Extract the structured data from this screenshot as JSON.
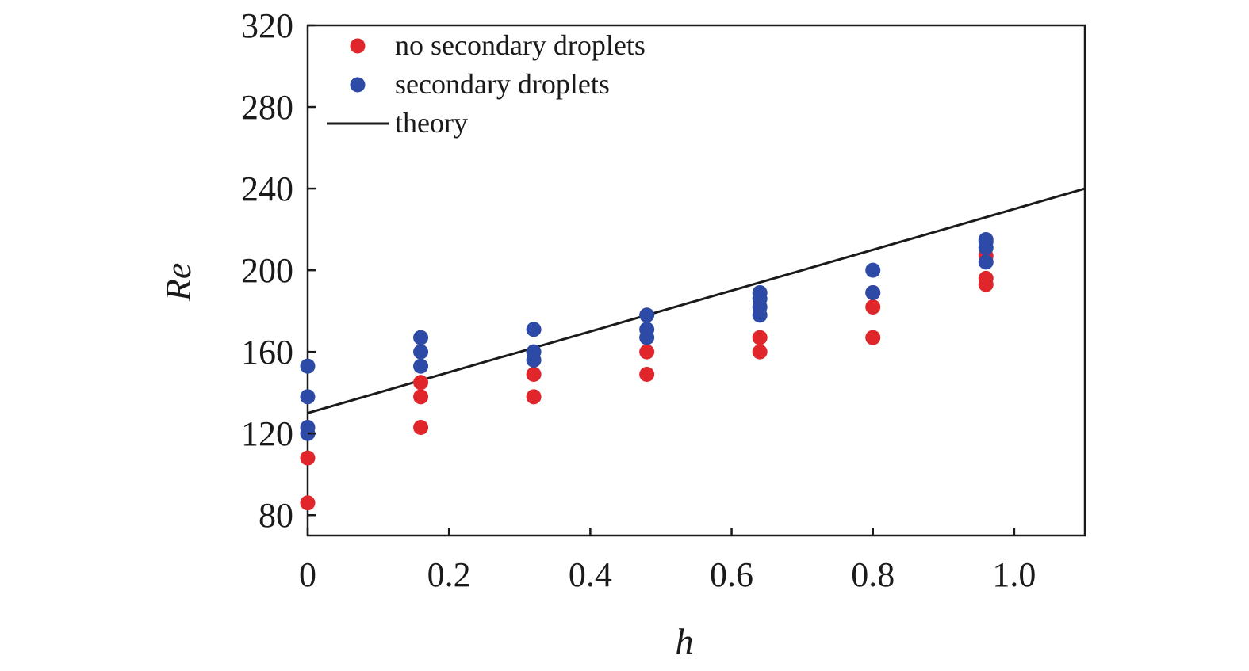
{
  "chart_data": {
    "type": "scatter",
    "title": "",
    "xlabel": "h",
    "ylabel": "Re",
    "xlim": [
      0,
      1.1
    ],
    "ylim": [
      70,
      320
    ],
    "xticks": [
      0,
      0.2,
      0.4,
      0.6,
      0.8,
      1.0
    ],
    "xtick_labels": [
      "0",
      "0.2",
      "0.4",
      "0.6",
      "0.8",
      "1.0"
    ],
    "yticks": [
      80,
      120,
      160,
      200,
      240,
      280,
      320
    ],
    "ytick_labels": [
      "80",
      "120",
      "160",
      "200",
      "240",
      "280",
      "320"
    ],
    "grid": false,
    "legend_position": "top-left",
    "series": [
      {
        "name": "no secondary droplets",
        "kind": "scatter",
        "color": "#e0262a",
        "points": [
          [
            0,
            86
          ],
          [
            0,
            108
          ],
          [
            0.16,
            123
          ],
          [
            0.16,
            138
          ],
          [
            0.16,
            145
          ],
          [
            0.32,
            138
          ],
          [
            0.32,
            149
          ],
          [
            0.48,
            149
          ],
          [
            0.48,
            160
          ],
          [
            0.64,
            160
          ],
          [
            0.64,
            167
          ],
          [
            0.8,
            167
          ],
          [
            0.8,
            182
          ],
          [
            0.8,
            189
          ],
          [
            0.96,
            193
          ],
          [
            0.96,
            196
          ],
          [
            0.96,
            207
          ]
        ]
      },
      {
        "name": "secondary droplets",
        "kind": "scatter",
        "color": "#2d4ba6",
        "points": [
          [
            0,
            120
          ],
          [
            0,
            123
          ],
          [
            0,
            138
          ],
          [
            0,
            153
          ],
          [
            0.16,
            153
          ],
          [
            0.16,
            160
          ],
          [
            0.16,
            167
          ],
          [
            0.32,
            156
          ],
          [
            0.32,
            160
          ],
          [
            0.32,
            171
          ],
          [
            0.48,
            167
          ],
          [
            0.48,
            171
          ],
          [
            0.48,
            178
          ],
          [
            0.64,
            178
          ],
          [
            0.64,
            182
          ],
          [
            0.64,
            186
          ],
          [
            0.64,
            189
          ],
          [
            0.8,
            189
          ],
          [
            0.8,
            200
          ],
          [
            0.96,
            204
          ],
          [
            0.96,
            211
          ],
          [
            0.96,
            214
          ],
          [
            0.96,
            215
          ]
        ]
      },
      {
        "name": "theory",
        "kind": "line",
        "color": "#1a1a1a",
        "points": [
          [
            0,
            130
          ],
          [
            1.1,
            240
          ]
        ]
      }
    ]
  }
}
